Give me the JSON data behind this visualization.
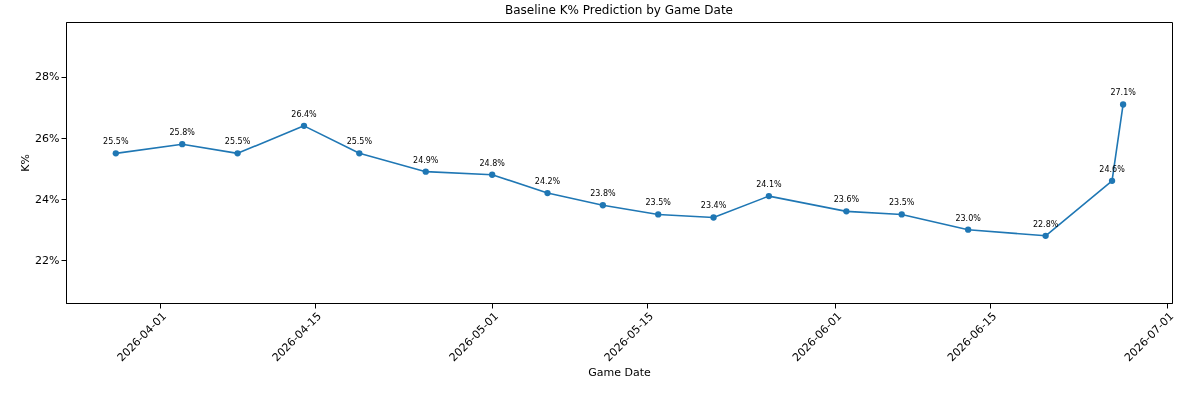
{
  "chart_data": {
    "type": "line",
    "title": "Baseline K% Prediction by Game Date",
    "xlabel": "Game Date",
    "ylabel": "K%",
    "x": [
      "2026-03-28",
      "2026-04-03",
      "2026-04-08",
      "2026-04-14",
      "2026-04-19",
      "2026-04-25",
      "2026-05-01",
      "2026-05-06",
      "2026-05-11",
      "2026-05-16",
      "2026-05-21",
      "2026-05-26",
      "2026-06-02",
      "2026-06-07",
      "2026-06-13",
      "2026-06-20",
      "2026-06-26",
      "2026-06-27"
    ],
    "series": [
      {
        "color": "#1f77b4",
        "values": [
          25.5,
          25.8,
          25.5,
          26.4,
          25.5,
          24.9,
          24.8,
          24.2,
          23.8,
          23.5,
          23.4,
          24.1,
          23.6,
          23.5,
          23.0,
          22.8,
          24.6,
          27.1
        ],
        "value_labels": [
          "25.5%",
          "25.8%",
          "25.5%",
          "26.4%",
          "25.5%",
          "24.9%",
          "24.8%",
          "24.2%",
          "23.8%",
          "23.5%",
          "23.4%",
          "24.1%",
          "23.6%",
          "23.5%",
          "23.0%",
          "22.8%",
          "24.6%",
          "27.1%"
        ]
      }
    ],
    "xlim": [
      "2026-03-23T12:00",
      "2026-07-01T10:00"
    ],
    "xticks": [
      "2026-04-01",
      "2026-04-15",
      "2026-05-01",
      "2026-05-15",
      "2026-06-01",
      "2026-06-15",
      "2026-07-01"
    ],
    "ylim": [
      20.6,
      29.8
    ],
    "yticks": [
      {
        "value": 22,
        "label": "22%"
      },
      {
        "value": 24,
        "label": "24%"
      },
      {
        "value": 26,
        "label": "26%"
      },
      {
        "value": 28,
        "label": "28%"
      }
    ],
    "marker": "circle",
    "line_style": "solid",
    "grid": false,
    "legend": false
  }
}
